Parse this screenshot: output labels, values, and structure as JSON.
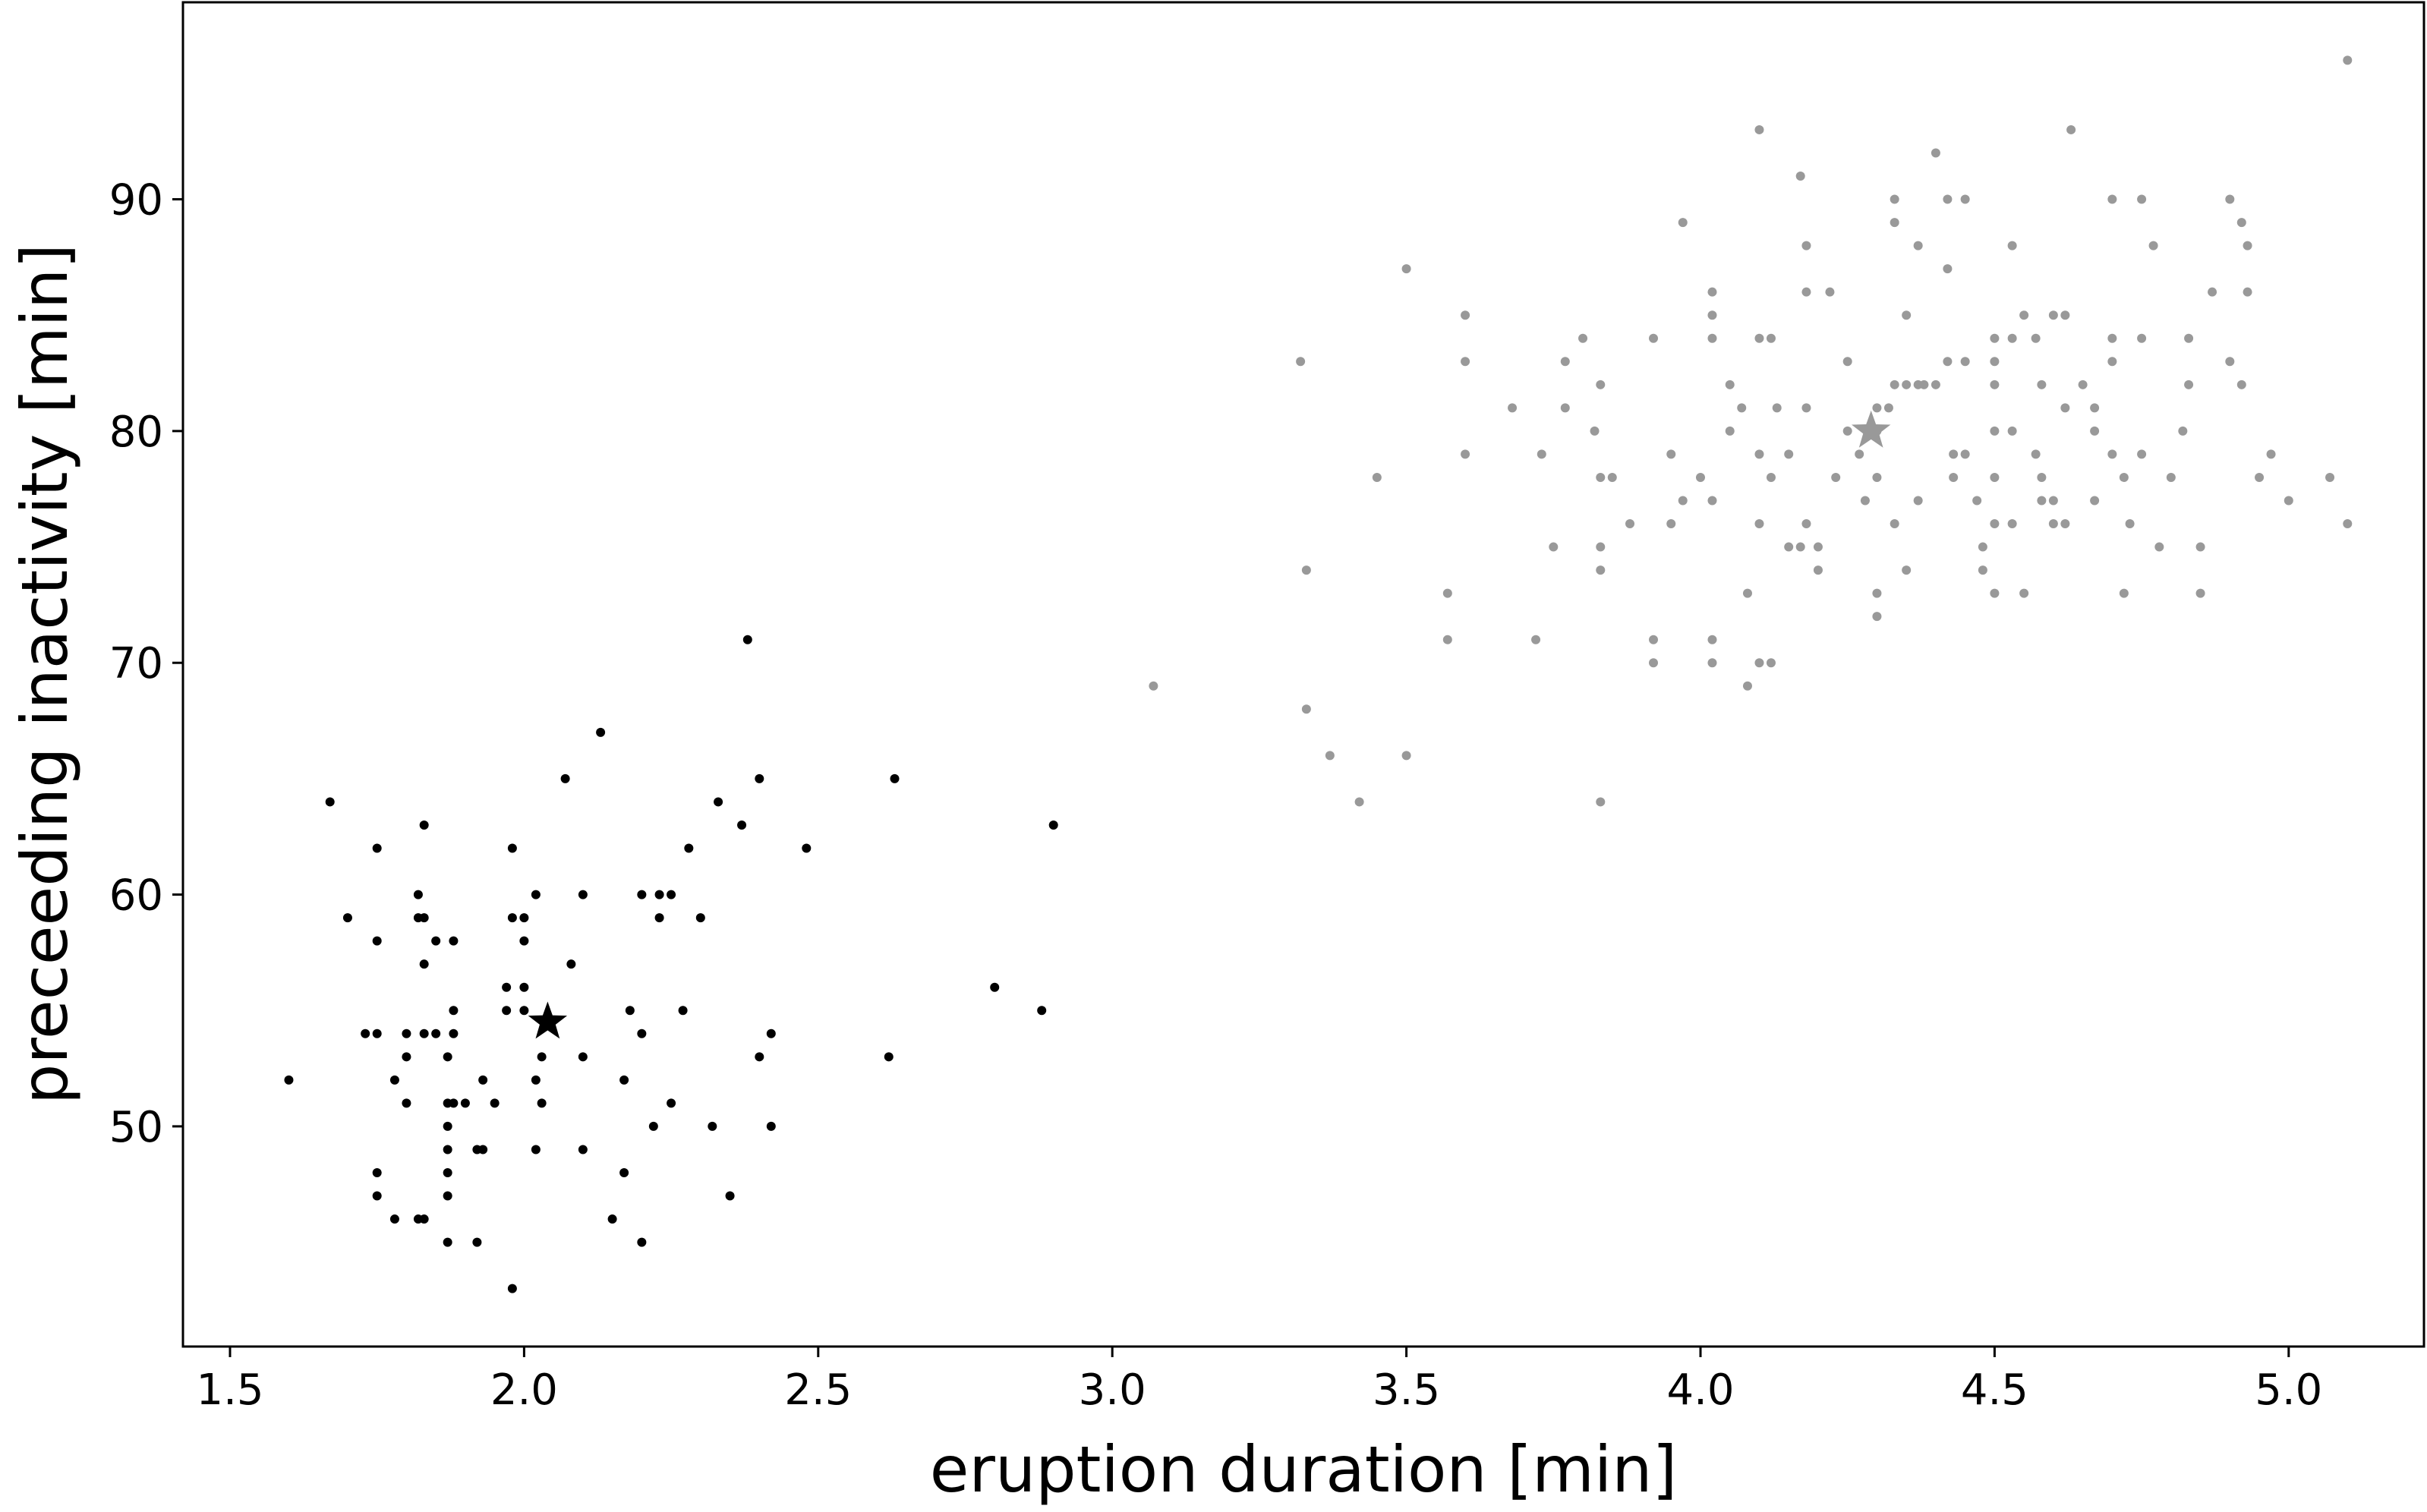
{
  "chart_data": {
    "type": "scatter",
    "title": "",
    "xlabel": "eruption duration [min]",
    "ylabel": "preceeding inactivity [min]",
    "xlim": [
      1.42,
      5.23
    ],
    "ylim": [
      40.5,
      98.5
    ],
    "xticks": [
      1.5,
      2.0,
      2.5,
      3.0,
      3.5,
      4.0,
      4.5,
      5.0
    ],
    "xtick_labels": [
      "1.5",
      "2.0",
      "2.5",
      "3.0",
      "3.5",
      "4.0",
      "4.5",
      "5.0"
    ],
    "yticks": [
      50,
      60,
      70,
      80,
      90
    ],
    "ytick_labels": [
      "50",
      "60",
      "70",
      "80",
      "90"
    ],
    "grid": false,
    "series": [
      {
        "color": "#000000",
        "points": [
          [
            1.6,
            52
          ],
          [
            1.67,
            64
          ],
          [
            1.7,
            59
          ],
          [
            1.73,
            54
          ],
          [
            1.75,
            54
          ],
          [
            1.75,
            62
          ],
          [
            1.75,
            58
          ],
          [
            1.75,
            48
          ],
          [
            1.75,
            47
          ],
          [
            1.78,
            52
          ],
          [
            1.78,
            46
          ],
          [
            1.8,
            54
          ],
          [
            1.8,
            53
          ],
          [
            1.8,
            51
          ],
          [
            1.82,
            60
          ],
          [
            1.82,
            59
          ],
          [
            1.82,
            46
          ],
          [
            1.83,
            63
          ],
          [
            1.83,
            59
          ],
          [
            1.83,
            57
          ],
          [
            1.83,
            54
          ],
          [
            1.83,
            46
          ],
          [
            1.85,
            58
          ],
          [
            1.85,
            54
          ],
          [
            1.87,
            53
          ],
          [
            1.87,
            51
          ],
          [
            1.87,
            50
          ],
          [
            1.87,
            49
          ],
          [
            1.87,
            48
          ],
          [
            1.87,
            47
          ],
          [
            1.87,
            45
          ],
          [
            1.88,
            58
          ],
          [
            1.88,
            55
          ],
          [
            1.88,
            54
          ],
          [
            1.88,
            51
          ],
          [
            1.9,
            51
          ],
          [
            1.92,
            49
          ],
          [
            1.92,
            45
          ],
          [
            1.93,
            49
          ],
          [
            1.93,
            52
          ],
          [
            1.95,
            51
          ],
          [
            1.97,
            56
          ],
          [
            1.97,
            55
          ],
          [
            1.98,
            62
          ],
          [
            1.98,
            59
          ],
          [
            1.98,
            43
          ],
          [
            2.0,
            59
          ],
          [
            2.0,
            58
          ],
          [
            2.0,
            56
          ],
          [
            2.0,
            55
          ],
          [
            2.02,
            60
          ],
          [
            2.02,
            52
          ],
          [
            2.02,
            49
          ],
          [
            2.03,
            53
          ],
          [
            2.03,
            51
          ],
          [
            2.07,
            65
          ],
          [
            2.08,
            57
          ],
          [
            2.1,
            60
          ],
          [
            2.1,
            53
          ],
          [
            2.1,
            49
          ],
          [
            2.13,
            67
          ],
          [
            2.15,
            46
          ],
          [
            2.17,
            52
          ],
          [
            2.17,
            48
          ],
          [
            2.18,
            55
          ],
          [
            2.2,
            60
          ],
          [
            2.2,
            54
          ],
          [
            2.2,
            45
          ],
          [
            2.22,
            50
          ],
          [
            2.23,
            60
          ],
          [
            2.23,
            59
          ],
          [
            2.25,
            60
          ],
          [
            2.25,
            51
          ],
          [
            2.27,
            55
          ],
          [
            2.28,
            62
          ],
          [
            2.3,
            59
          ],
          [
            2.32,
            50
          ],
          [
            2.33,
            64
          ],
          [
            2.35,
            47
          ],
          [
            2.37,
            63
          ],
          [
            2.38,
            71
          ],
          [
            2.4,
            65
          ],
          [
            2.4,
            53
          ],
          [
            2.42,
            54
          ],
          [
            2.42,
            50
          ],
          [
            2.48,
            62
          ],
          [
            2.62,
            53
          ],
          [
            2.63,
            65
          ],
          [
            2.8,
            56
          ],
          [
            2.88,
            55
          ],
          [
            2.9,
            63
          ]
        ],
        "centroid": [
          2.04,
          54.5
        ]
      },
      {
        "color": "#999999",
        "points": [
          [
            3.07,
            69
          ],
          [
            3.32,
            83
          ],
          [
            3.33,
            74
          ],
          [
            3.33,
            68
          ],
          [
            3.37,
            66
          ],
          [
            3.42,
            64
          ],
          [
            3.45,
            78
          ],
          [
            3.5,
            87
          ],
          [
            3.5,
            66
          ],
          [
            3.57,
            73
          ],
          [
            3.57,
            71
          ],
          [
            3.6,
            85
          ],
          [
            3.6,
            83
          ],
          [
            3.6,
            79
          ],
          [
            3.68,
            81
          ],
          [
            3.72,
            71
          ],
          [
            3.73,
            79
          ],
          [
            3.75,
            75
          ],
          [
            3.77,
            83
          ],
          [
            3.77,
            81
          ],
          [
            3.8,
            84
          ],
          [
            3.82,
            80
          ],
          [
            3.83,
            82
          ],
          [
            3.83,
            78
          ],
          [
            3.83,
            75
          ],
          [
            3.83,
            74
          ],
          [
            3.83,
            64
          ],
          [
            3.85,
            78
          ],
          [
            3.88,
            76
          ],
          [
            3.92,
            84
          ],
          [
            3.92,
            71
          ],
          [
            3.92,
            70
          ],
          [
            3.95,
            79
          ],
          [
            3.95,
            76
          ],
          [
            3.97,
            89
          ],
          [
            3.97,
            77
          ],
          [
            4.0,
            78
          ],
          [
            4.02,
            86
          ],
          [
            4.02,
            85
          ],
          [
            4.02,
            84
          ],
          [
            4.02,
            77
          ],
          [
            4.02,
            71
          ],
          [
            4.02,
            70
          ],
          [
            4.05,
            82
          ],
          [
            4.05,
            80
          ],
          [
            4.07,
            81
          ],
          [
            4.08,
            69
          ],
          [
            4.08,
            73
          ],
          [
            4.1,
            93
          ],
          [
            4.1,
            84
          ],
          [
            4.1,
            79
          ],
          [
            4.1,
            76
          ],
          [
            4.1,
            70
          ],
          [
            4.12,
            84
          ],
          [
            4.12,
            78
          ],
          [
            4.12,
            70
          ],
          [
            4.13,
            81
          ],
          [
            4.15,
            79
          ],
          [
            4.15,
            75
          ],
          [
            4.17,
            91
          ],
          [
            4.17,
            75
          ],
          [
            4.18,
            88
          ],
          [
            4.18,
            86
          ],
          [
            4.18,
            81
          ],
          [
            4.18,
            76
          ],
          [
            4.2,
            75
          ],
          [
            4.2,
            74
          ],
          [
            4.22,
            86
          ],
          [
            4.23,
            78
          ],
          [
            4.25,
            83
          ],
          [
            4.25,
            80
          ],
          [
            4.27,
            79
          ],
          [
            4.28,
            77
          ],
          [
            4.3,
            81
          ],
          [
            4.3,
            80
          ],
          [
            4.3,
            78
          ],
          [
            4.3,
            73
          ],
          [
            4.3,
            72
          ],
          [
            4.32,
            81
          ],
          [
            4.33,
            90
          ],
          [
            4.33,
            89
          ],
          [
            4.33,
            82
          ],
          [
            4.33,
            76
          ],
          [
            4.35,
            85
          ],
          [
            4.35,
            82
          ],
          [
            4.35,
            74
          ],
          [
            4.37,
            88
          ],
          [
            4.37,
            82
          ],
          [
            4.37,
            77
          ],
          [
            4.38,
            82
          ],
          [
            4.4,
            92
          ],
          [
            4.4,
            82
          ],
          [
            4.42,
            90
          ],
          [
            4.42,
            87
          ],
          [
            4.42,
            83
          ],
          [
            4.43,
            79
          ],
          [
            4.43,
            78
          ],
          [
            4.45,
            90
          ],
          [
            4.45,
            83
          ],
          [
            4.45,
            79
          ],
          [
            4.47,
            77
          ],
          [
            4.48,
            75
          ],
          [
            4.48,
            74
          ],
          [
            4.5,
            84
          ],
          [
            4.5,
            83
          ],
          [
            4.5,
            82
          ],
          [
            4.5,
            80
          ],
          [
            4.5,
            78
          ],
          [
            4.5,
            76
          ],
          [
            4.5,
            73
          ],
          [
            4.53,
            88
          ],
          [
            4.53,
            84
          ],
          [
            4.53,
            80
          ],
          [
            4.53,
            76
          ],
          [
            4.55,
            85
          ],
          [
            4.55,
            73
          ],
          [
            4.57,
            84
          ],
          [
            4.57,
            79
          ],
          [
            4.58,
            82
          ],
          [
            4.58,
            78
          ],
          [
            4.58,
            77
          ],
          [
            4.6,
            85
          ],
          [
            4.6,
            77
          ],
          [
            4.6,
            76
          ],
          [
            4.62,
            85
          ],
          [
            4.62,
            81
          ],
          [
            4.62,
            76
          ],
          [
            4.63,
            93
          ],
          [
            4.65,
            82
          ],
          [
            4.67,
            81
          ],
          [
            4.67,
            80
          ],
          [
            4.67,
            77
          ],
          [
            4.7,
            90
          ],
          [
            4.7,
            84
          ],
          [
            4.7,
            83
          ],
          [
            4.7,
            79
          ],
          [
            4.72,
            78
          ],
          [
            4.72,
            73
          ],
          [
            4.73,
            76
          ],
          [
            4.75,
            90
          ],
          [
            4.75,
            84
          ],
          [
            4.75,
            79
          ],
          [
            4.77,
            88
          ],
          [
            4.78,
            75
          ],
          [
            4.8,
            78
          ],
          [
            4.82,
            80
          ],
          [
            4.83,
            84
          ],
          [
            4.83,
            82
          ],
          [
            4.85,
            75
          ],
          [
            4.85,
            73
          ],
          [
            4.87,
            86
          ],
          [
            4.9,
            90
          ],
          [
            4.9,
            83
          ],
          [
            4.92,
            89
          ],
          [
            4.92,
            82
          ],
          [
            4.93,
            88
          ],
          [
            4.93,
            86
          ],
          [
            4.95,
            78
          ],
          [
            4.97,
            79
          ],
          [
            5.0,
            77
          ],
          [
            5.07,
            78
          ],
          [
            5.1,
            76
          ],
          [
            5.1,
            96
          ]
        ],
        "centroid": [
          4.29,
          80.0
        ]
      }
    ]
  }
}
